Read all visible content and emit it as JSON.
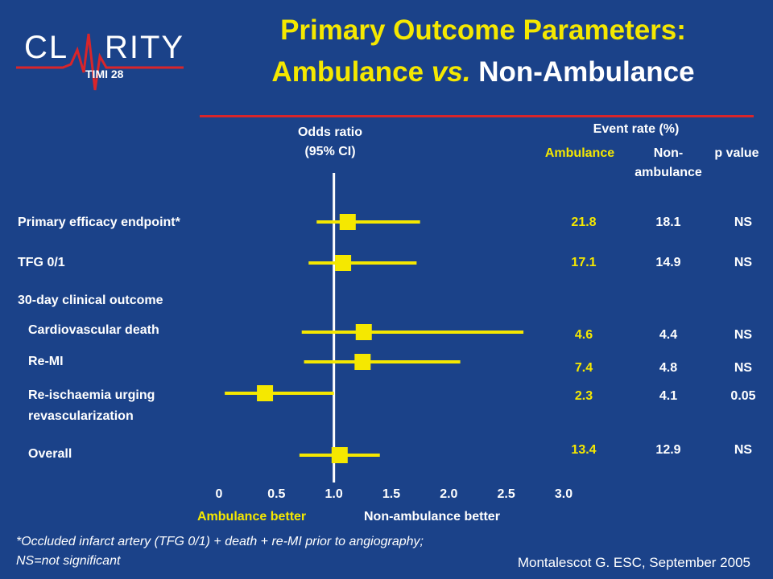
{
  "logo": {
    "text_main": "CL—RITY",
    "text_sub": "TIMI 28"
  },
  "title": {
    "line1": "Primary Outcome Parameters:",
    "line2_a": "Ambulance",
    "line2_vs": "vs.",
    "line2_b": "Non-Ambulance"
  },
  "headers": {
    "odds_ratio": "Odds ratio",
    "ci": "(95% CI)",
    "event_rate": "Event rate (%)",
    "col_ambulance": "Ambulance",
    "col_non_1": "Non-",
    "col_non_2": "ambulance",
    "col_p": "p value"
  },
  "section_label": "30-day clinical outcome",
  "chart_data": {
    "type": "forest",
    "reference_line": 1.0,
    "xlim": [
      0,
      3.0
    ],
    "x_ticks": [
      "0",
      "0.5",
      "1.0",
      "1.5",
      "2.0",
      "2.5",
      "3.0"
    ],
    "x_tick_values": [
      0,
      0.5,
      1.0,
      1.5,
      2.0,
      2.5,
      3.0
    ],
    "xlabel_left": "Ambulance better",
    "xlabel_right": "Non-ambulance better",
    "rows": [
      {
        "label": "Primary efficacy endpoint*",
        "or": 1.12,
        "lo": 0.85,
        "hi": 1.75,
        "ambulance": "21.8",
        "non_ambulance": "18.1",
        "p": "NS"
      },
      {
        "label": "TFG 0/1",
        "or": 1.08,
        "lo": 0.78,
        "hi": 1.72,
        "ambulance": "17.1",
        "non_ambulance": "14.9",
        "p": "NS"
      },
      {
        "label": "Cardiovascular death",
        "or": 1.26,
        "lo": 0.72,
        "hi": 2.65,
        "ambulance": "4.6",
        "non_ambulance": "4.4",
        "p": "NS"
      },
      {
        "label": "Re-MI",
        "or": 1.25,
        "lo": 0.74,
        "hi": 2.1,
        "ambulance": "7.4",
        "non_ambulance": "4.8",
        "p": "NS"
      },
      {
        "label": "Re-ischaemia urging revascularization",
        "or": 0.4,
        "lo": 0.05,
        "hi": 1.0,
        "ambulance": "2.3",
        "non_ambulance": "4.1",
        "p": "0.05"
      },
      {
        "label": "Overall",
        "or": 1.05,
        "lo": 0.7,
        "hi": 1.4,
        "ambulance": "13.4",
        "non_ambulance": "12.9",
        "p": "NS"
      }
    ]
  },
  "footnote_1": "*Occluded infarct artery (TFG 0/1) + death + re-MI prior to angiography;",
  "footnote_2": "NS=not significant",
  "citation": "Montalescot G. ESC, September 2005",
  "colors": {
    "background": "#1b4289",
    "accent": "#f5e800",
    "rule": "#d9252a"
  }
}
